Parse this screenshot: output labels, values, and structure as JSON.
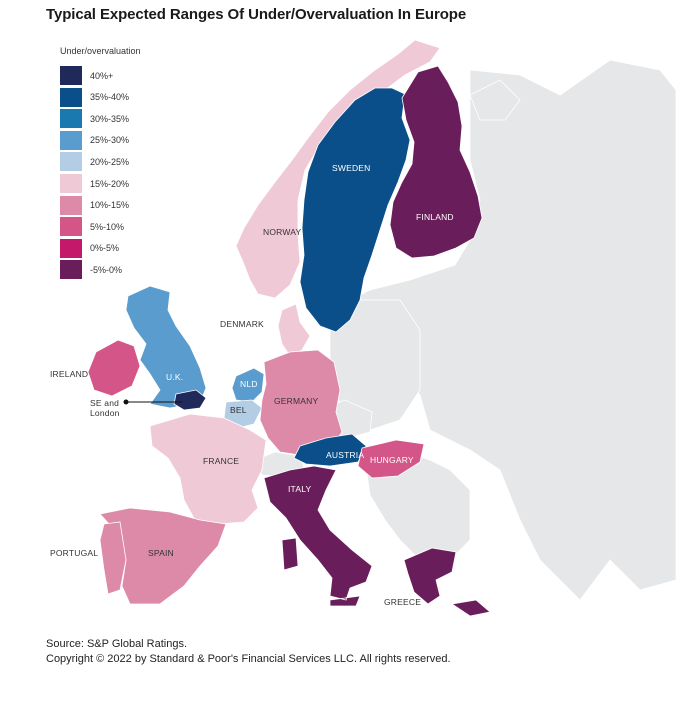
{
  "title": "Typical Expected Ranges Of Under/Overvaluation In Europe",
  "legend": {
    "title": "Under/overvaluation",
    "items": [
      {
        "label": "40%+",
        "color": "#1f2a5a"
      },
      {
        "label": "35%-40%",
        "color": "#0b4f8a"
      },
      {
        "label": "30%-35%",
        "color": "#1a7ab0"
      },
      {
        "label": "25%-30%",
        "color": "#5a9ccd"
      },
      {
        "label": "20%-25%",
        "color": "#b3cde5"
      },
      {
        "label": "15%-20%",
        "color": "#f0c9d6"
      },
      {
        "label": "10%-15%",
        "color": "#dd8aa8"
      },
      {
        "label": "5%-10%",
        "color": "#d45587"
      },
      {
        "label": "0%-5%",
        "color": "#c4186b"
      },
      {
        "label": "-5%-0%",
        "color": "#6a1d5b"
      }
    ]
  },
  "countries": {
    "sweden": {
      "label": "SWEDEN",
      "range": "35%-40%"
    },
    "finland": {
      "label": "FINLAND",
      "range": "-5%-0%"
    },
    "norway": {
      "label": "NORWAY",
      "range": "15%-20%"
    },
    "denmark": {
      "label": "DENMARK",
      "range": "15%-20%"
    },
    "ireland": {
      "label": "IRELAND",
      "range": "5%-10%"
    },
    "uk": {
      "label": "U.K.",
      "range": "25%-30%"
    },
    "se_london": {
      "label_line1": "SE and",
      "label_line2": "London",
      "range": "40%+"
    },
    "netherlands": {
      "label": "NLD",
      "range": "25%-30%"
    },
    "belgium": {
      "label": "BEL",
      "range": "20%-25%"
    },
    "germany": {
      "label": "GERMANY",
      "range": "10%-15%"
    },
    "france": {
      "label": "FRANCE",
      "range": "15%-20%"
    },
    "austria": {
      "label": "AUSTRIA",
      "range": "35%-40%"
    },
    "hungary": {
      "label": "HUNGARY",
      "range": "5%-10%"
    },
    "italy": {
      "label": "ITALY",
      "range": "-5%-0%"
    },
    "portugal": {
      "label": "PORTUGAL",
      "range": "10%-15%"
    },
    "spain": {
      "label": "SPAIN",
      "range": "10%-15%"
    },
    "greece": {
      "label": "GREECE",
      "range": "-5%-0%"
    }
  },
  "colors": {
    "no_data": "#e6e7e8"
  },
  "source": {
    "line1": "Source: S&P Global Ratings.",
    "line2": "Copyright © 2022 by Standard & Poor's Financial Services LLC. All rights reserved."
  }
}
